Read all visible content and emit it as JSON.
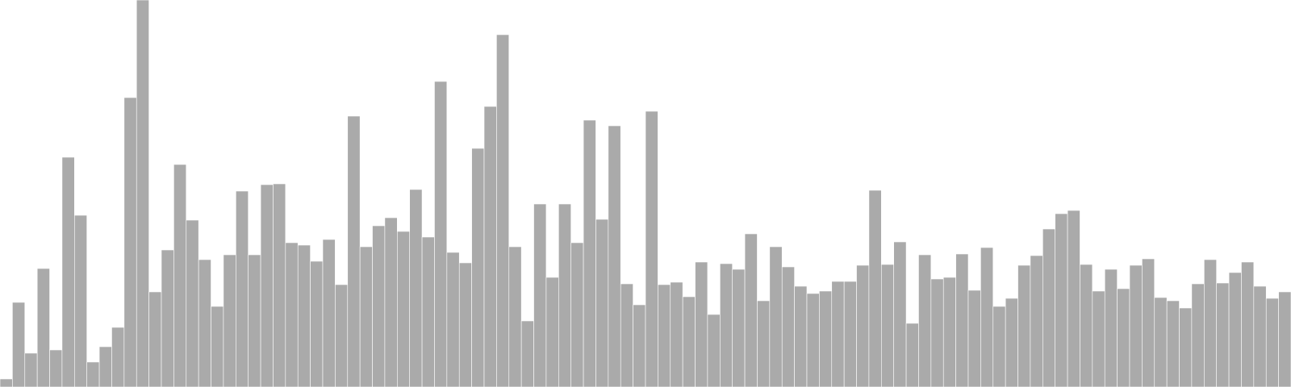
{
  "chart_data": {
    "type": "bar",
    "title": "",
    "xlabel": "",
    "ylabel": "",
    "ylim": [
      0,
      480
    ],
    "grid": false,
    "legend": "none",
    "bar_color": "#aaaaaa",
    "bar_edge_color": "#ffffff",
    "values": [
      10,
      105,
      42,
      147,
      46,
      285,
      213,
      31,
      50,
      74,
      359,
      480,
      118,
      170,
      276,
      207,
      158,
      100,
      164,
      243,
      164,
      251,
      252,
      179,
      176,
      156,
      183,
      127,
      336,
      174,
      200,
      210,
      193,
      245,
      186,
      379,
      167,
      154,
      296,
      348,
      437,
      174,
      82,
      227,
      136,
      227,
      179,
      331,
      208,
      324,
      128,
      102,
      342,
      127,
      130,
      112,
      155,
      90,
      153,
      146,
      190,
      107,
      174,
      149,
      125,
      116,
      119,
      131,
      131,
      151,
      244,
      152,
      180,
      79,
      164,
      134,
      136,
      165,
      120,
      173,
      100,
      110,
      151,
      163,
      196,
      215,
      219,
      152,
      119,
      146,
      122,
      151,
      159,
      111,
      107,
      98,
      128,
      158,
      129,
      142,
      155,
      125,
      110,
      118
    ]
  }
}
